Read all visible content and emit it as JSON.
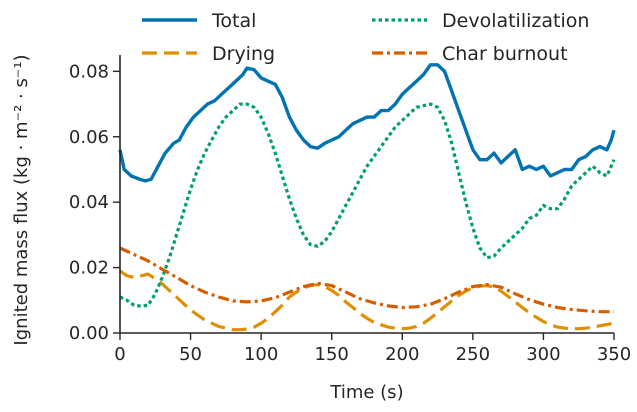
{
  "chart_data": {
    "type": "line",
    "xlabel": "Time (s)",
    "ylabel": "Ignited mass flux (kg · m⁻² · s⁻¹)",
    "xlim": [
      0,
      350
    ],
    "ylim": [
      0,
      0.085
    ],
    "xticks": [
      0,
      50,
      100,
      150,
      200,
      250,
      300,
      350
    ],
    "xtick_labels": [
      "0",
      "50",
      "100",
      "150",
      "200",
      "250",
      "300",
      "350"
    ],
    "yticks": [
      0,
      0.02,
      0.04,
      0.06,
      0.08
    ],
    "ytick_labels": [
      "0.00",
      "0.02",
      "0.04",
      "0.06",
      "0.08"
    ],
    "grid": false,
    "legend_position": "top",
    "series": [
      {
        "name": "Total",
        "color": "#0173b2",
        "style": "solid",
        "points": [
          [
            0,
            0.056
          ],
          [
            3,
            0.05
          ],
          [
            8,
            0.048
          ],
          [
            14,
            0.047
          ],
          [
            18,
            0.0465
          ],
          [
            22,
            0.047
          ],
          [
            27,
            0.051
          ],
          [
            32,
            0.055
          ],
          [
            38,
            0.058
          ],
          [
            42,
            0.059
          ],
          [
            47,
            0.063
          ],
          [
            52,
            0.066
          ],
          [
            57,
            0.068
          ],
          [
            62,
            0.07
          ],
          [
            67,
            0.071
          ],
          [
            72,
            0.073
          ],
          [
            77,
            0.075
          ],
          [
            82,
            0.077
          ],
          [
            87,
            0.079
          ],
          [
            90,
            0.081
          ],
          [
            95,
            0.0805
          ],
          [
            100,
            0.078
          ],
          [
            105,
            0.077
          ],
          [
            110,
            0.076
          ],
          [
            115,
            0.072
          ],
          [
            120,
            0.066
          ],
          [
            125,
            0.062
          ],
          [
            130,
            0.059
          ],
          [
            135,
            0.057
          ],
          [
            140,
            0.0565
          ],
          [
            145,
            0.058
          ],
          [
            150,
            0.059
          ],
          [
            155,
            0.06
          ],
          [
            160,
            0.062
          ],
          [
            165,
            0.064
          ],
          [
            170,
            0.065
          ],
          [
            175,
            0.066
          ],
          [
            180,
            0.066
          ],
          [
            185,
            0.068
          ],
          [
            190,
            0.068
          ],
          [
            195,
            0.07
          ],
          [
            200,
            0.073
          ],
          [
            205,
            0.075
          ],
          [
            210,
            0.077
          ],
          [
            215,
            0.079
          ],
          [
            220,
            0.082
          ],
          [
            225,
            0.082
          ],
          [
            230,
            0.08
          ],
          [
            235,
            0.074
          ],
          [
            240,
            0.068
          ],
          [
            245,
            0.062
          ],
          [
            250,
            0.056
          ],
          [
            255,
            0.053
          ],
          [
            260,
            0.053
          ],
          [
            265,
            0.055
          ],
          [
            270,
            0.052
          ],
          [
            275,
            0.054
          ],
          [
            280,
            0.056
          ],
          [
            285,
            0.05
          ],
          [
            290,
            0.051
          ],
          [
            295,
            0.05
          ],
          [
            300,
            0.051
          ],
          [
            305,
            0.048
          ],
          [
            310,
            0.049
          ],
          [
            315,
            0.05
          ],
          [
            320,
            0.05
          ],
          [
            325,
            0.053
          ],
          [
            330,
            0.054
          ],
          [
            335,
            0.056
          ],
          [
            340,
            0.057
          ],
          [
            345,
            0.056
          ],
          [
            348,
            0.059
          ],
          [
            350,
            0.062
          ]
        ]
      },
      {
        "name": "Drying",
        "color": "#de8f05",
        "style": "dashed",
        "points": [
          [
            0,
            0.019
          ],
          [
            5,
            0.0175
          ],
          [
            10,
            0.017
          ],
          [
            15,
            0.0175
          ],
          [
            20,
            0.018
          ],
          [
            25,
            0.0165
          ],
          [
            30,
            0.015
          ],
          [
            35,
            0.013
          ],
          [
            40,
            0.011
          ],
          [
            45,
            0.009
          ],
          [
            50,
            0.007
          ],
          [
            55,
            0.0055
          ],
          [
            60,
            0.004
          ],
          [
            65,
            0.003
          ],
          [
            70,
            0.002
          ],
          [
            75,
            0.0015
          ],
          [
            80,
            0.001
          ],
          [
            85,
            0.001
          ],
          [
            90,
            0.0012
          ],
          [
            95,
            0.0018
          ],
          [
            100,
            0.003
          ],
          [
            105,
            0.0045
          ],
          [
            110,
            0.0065
          ],
          [
            115,
            0.0085
          ],
          [
            120,
            0.011
          ],
          [
            125,
            0.0125
          ],
          [
            130,
            0.0138
          ],
          [
            135,
            0.0145
          ],
          [
            140,
            0.0148
          ],
          [
            145,
            0.0142
          ],
          [
            150,
            0.013
          ],
          [
            155,
            0.0115
          ],
          [
            160,
            0.0095
          ],
          [
            165,
            0.0078
          ],
          [
            170,
            0.006
          ],
          [
            175,
            0.0045
          ],
          [
            180,
            0.0032
          ],
          [
            185,
            0.0025
          ],
          [
            190,
            0.0018
          ],
          [
            195,
            0.0015
          ],
          [
            200,
            0.0013
          ],
          [
            205,
            0.0015
          ],
          [
            210,
            0.002
          ],
          [
            215,
            0.003
          ],
          [
            220,
            0.0045
          ],
          [
            225,
            0.0062
          ],
          [
            230,
            0.008
          ],
          [
            235,
            0.0098
          ],
          [
            240,
            0.0115
          ],
          [
            245,
            0.0128
          ],
          [
            250,
            0.0138
          ],
          [
            255,
            0.0143
          ],
          [
            260,
            0.0145
          ],
          [
            265,
            0.014
          ],
          [
            270,
            0.0128
          ],
          [
            275,
            0.0112
          ],
          [
            280,
            0.0095
          ],
          [
            285,
            0.0078
          ],
          [
            290,
            0.0062
          ],
          [
            295,
            0.0048
          ],
          [
            300,
            0.0035
          ],
          [
            305,
            0.0025
          ],
          [
            310,
            0.0018
          ],
          [
            315,
            0.0015
          ],
          [
            320,
            0.0013
          ],
          [
            325,
            0.0013
          ],
          [
            330,
            0.0015
          ],
          [
            335,
            0.0018
          ],
          [
            340,
            0.0022
          ],
          [
            345,
            0.0026
          ],
          [
            350,
            0.003
          ]
        ]
      },
      {
        "name": "Devolatilization",
        "color": "#029e73",
        "style": "dotted",
        "points": [
          [
            0,
            0.011
          ],
          [
            5,
            0.01
          ],
          [
            10,
            0.0085
          ],
          [
            15,
            0.0082
          ],
          [
            20,
            0.0085
          ],
          [
            25,
            0.012
          ],
          [
            30,
            0.017
          ],
          [
            35,
            0.023
          ],
          [
            40,
            0.03
          ],
          [
            45,
            0.037
          ],
          [
            50,
            0.044
          ],
          [
            55,
            0.05
          ],
          [
            60,
            0.055
          ],
          [
            65,
            0.059
          ],
          [
            70,
            0.063
          ],
          [
            75,
            0.066
          ],
          [
            80,
            0.068
          ],
          [
            85,
            0.07
          ],
          [
            90,
            0.07
          ],
          [
            95,
            0.069
          ],
          [
            100,
            0.066
          ],
          [
            105,
            0.061
          ],
          [
            110,
            0.055
          ],
          [
            115,
            0.048
          ],
          [
            120,
            0.041
          ],
          [
            125,
            0.035
          ],
          [
            130,
            0.03
          ],
          [
            135,
            0.027
          ],
          [
            140,
            0.0265
          ],
          [
            145,
            0.028
          ],
          [
            150,
            0.031
          ],
          [
            155,
            0.035
          ],
          [
            160,
            0.039
          ],
          [
            165,
            0.043
          ],
          [
            170,
            0.047
          ],
          [
            175,
            0.051
          ],
          [
            180,
            0.054
          ],
          [
            185,
            0.057
          ],
          [
            190,
            0.06
          ],
          [
            195,
            0.063
          ],
          [
            200,
            0.065
          ],
          [
            205,
            0.067
          ],
          [
            210,
            0.069
          ],
          [
            215,
            0.0695
          ],
          [
            220,
            0.07
          ],
          [
            225,
            0.069
          ],
          [
            230,
            0.065
          ],
          [
            235,
            0.058
          ],
          [
            240,
            0.049
          ],
          [
            245,
            0.04
          ],
          [
            250,
            0.032
          ],
          [
            255,
            0.026
          ],
          [
            260,
            0.023
          ],
          [
            265,
            0.0235
          ],
          [
            270,
            0.026
          ],
          [
            275,
            0.028
          ],
          [
            280,
            0.03
          ],
          [
            285,
            0.032
          ],
          [
            290,
            0.035
          ],
          [
            295,
            0.036
          ],
          [
            300,
            0.039
          ],
          [
            305,
            0.038
          ],
          [
            310,
            0.038
          ],
          [
            315,
            0.041
          ],
          [
            320,
            0.045
          ],
          [
            325,
            0.047
          ],
          [
            330,
            0.049
          ],
          [
            335,
            0.051
          ],
          [
            340,
            0.049
          ],
          [
            345,
            0.048
          ],
          [
            350,
            0.053
          ]
        ]
      },
      {
        "name": "Char burnout",
        "color": "#d55e00",
        "style": "dashdot",
        "points": [
          [
            0,
            0.026
          ],
          [
            10,
            0.024
          ],
          [
            20,
            0.022
          ],
          [
            30,
            0.0195
          ],
          [
            40,
            0.017
          ],
          [
            50,
            0.0145
          ],
          [
            60,
            0.0125
          ],
          [
            70,
            0.011
          ],
          [
            80,
            0.0098
          ],
          [
            90,
            0.0095
          ],
          [
            100,
            0.0098
          ],
          [
            110,
            0.0108
          ],
          [
            120,
            0.0125
          ],
          [
            130,
            0.0142
          ],
          [
            140,
            0.0152
          ],
          [
            150,
            0.0145
          ],
          [
            160,
            0.0125
          ],
          [
            170,
            0.0105
          ],
          [
            180,
            0.0092
          ],
          [
            190,
            0.0083
          ],
          [
            200,
            0.0078
          ],
          [
            210,
            0.008
          ],
          [
            220,
            0.0088
          ],
          [
            230,
            0.0105
          ],
          [
            240,
            0.0125
          ],
          [
            250,
            0.0142
          ],
          [
            260,
            0.0148
          ],
          [
            270,
            0.014
          ],
          [
            280,
            0.012
          ],
          [
            290,
            0.0102
          ],
          [
            300,
            0.0088
          ],
          [
            310,
            0.0078
          ],
          [
            320,
            0.0072
          ],
          [
            330,
            0.0068
          ],
          [
            340,
            0.0065
          ],
          [
            350,
            0.0065
          ]
        ]
      }
    ]
  }
}
